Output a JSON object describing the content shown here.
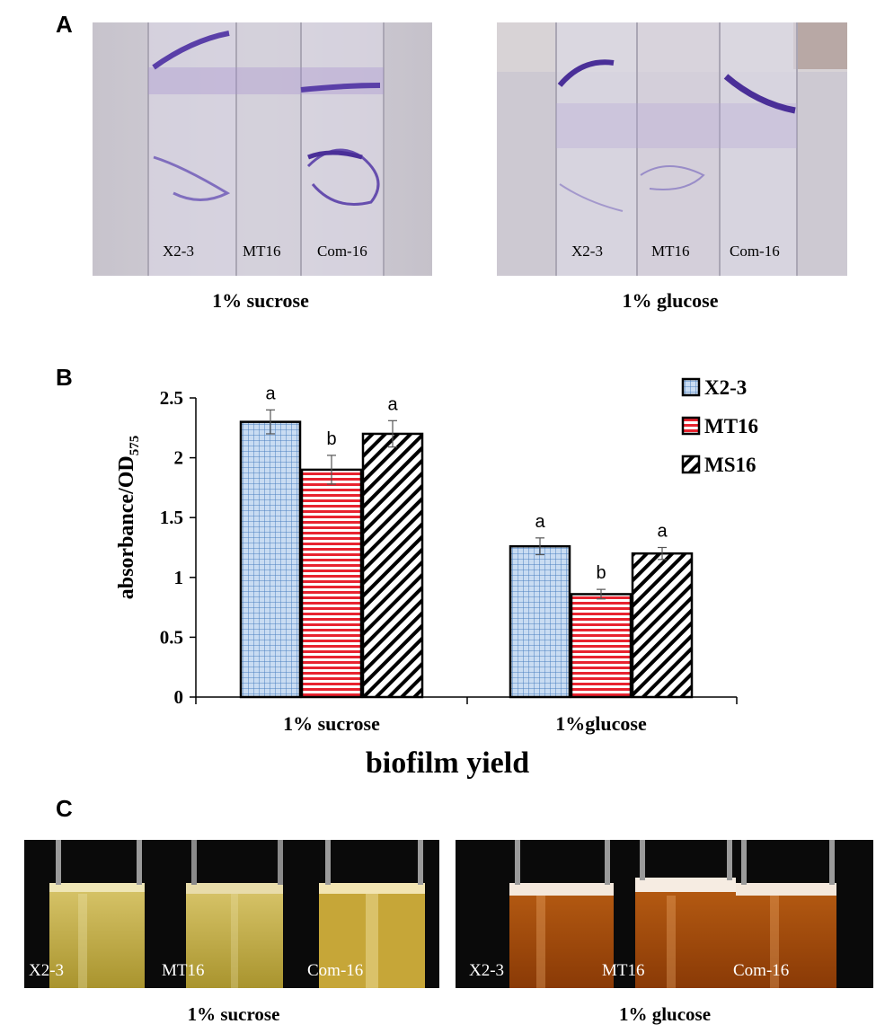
{
  "panels": {
    "a": "A",
    "b": "B",
    "c": "C"
  },
  "panel_a": {
    "left": {
      "caption": "1% sucrose",
      "labels": [
        "X2-3",
        "MT16",
        "Com-16"
      ]
    },
    "right": {
      "caption": "1% glucose",
      "labels": [
        "X2-3",
        "MT16",
        "Com-16"
      ]
    }
  },
  "panel_c": {
    "left": {
      "caption": "1% sucrose",
      "labels": [
        "X2-3",
        "MT16",
        "Com-16"
      ]
    },
    "right": {
      "caption": "1% glucose",
      "labels": [
        "X2-3",
        "MT16",
        "Com-16"
      ]
    }
  },
  "colors": {
    "x23_fill": "#c9dcf2",
    "x23_grid": "#4a7fc0",
    "mt16_fill": "#ffffff",
    "mt16_stripe": "#e8232f",
    "ms16_stripe": "#000000",
    "stain": "#5a3fa8"
  },
  "chart_data": {
    "type": "bar",
    "categories": [
      "1% sucrose",
      "1%glucose"
    ],
    "series": [
      {
        "name": "X2-3",
        "values": [
          2.3,
          1.26
        ],
        "errors": [
          0.1,
          0.07
        ],
        "letters": [
          "a",
          "a"
        ]
      },
      {
        "name": "MT16",
        "values": [
          1.9,
          0.86
        ],
        "errors": [
          0.12,
          0.04
        ],
        "letters": [
          "b",
          "b"
        ]
      },
      {
        "name": "MS16",
        "values": [
          2.2,
          1.2
        ],
        "errors": [
          0.11,
          0.05
        ],
        "letters": [
          "a",
          "a"
        ]
      }
    ],
    "xlabel": "biofilm yield",
    "ylabel": "absorbance/OD",
    "ylabel_sub": "575",
    "ylim": [
      0,
      2.5
    ],
    "yticks": [
      "0",
      "0.5",
      "1",
      "1.5",
      "2",
      "2.5"
    ],
    "legend_position": "top-right"
  }
}
